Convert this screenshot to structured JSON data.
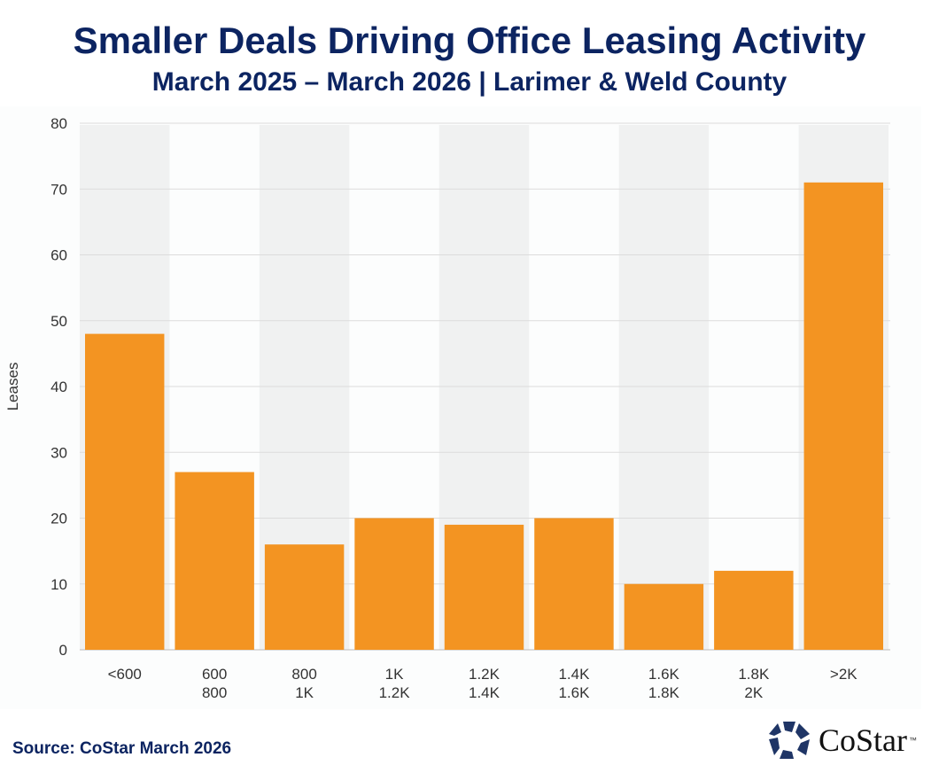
{
  "title": "Smaller Deals Driving Office Leasing Activity",
  "subtitle": "March 2025 – March 2026 | Larimer & Weld County",
  "source": "Source: CoStar March 2026",
  "logo": {
    "text": "CoStar",
    "tm": "™"
  },
  "colors": {
    "bar": "#f39422",
    "title": "#0c2461",
    "band": "#f0f1f1"
  },
  "chart_data": {
    "type": "bar",
    "categories": [
      [
        "<600"
      ],
      [
        "600",
        "800"
      ],
      [
        "800",
        "1K"
      ],
      [
        "1K",
        "1.2K"
      ],
      [
        "1.2K",
        "1.4K"
      ],
      [
        "1.4K",
        "1.6K"
      ],
      [
        "1.6K",
        "1.8K"
      ],
      [
        "1.8K",
        "2K"
      ],
      [
        ">2K"
      ]
    ],
    "values": [
      48,
      27,
      16,
      20,
      19,
      20,
      10,
      12,
      71
    ],
    "ylabel": "Leases",
    "ylim": [
      0,
      80
    ],
    "yticks": [
      0,
      10,
      20,
      30,
      40,
      50,
      60,
      70,
      80
    ],
    "grid": true,
    "alternating_bands": true
  }
}
